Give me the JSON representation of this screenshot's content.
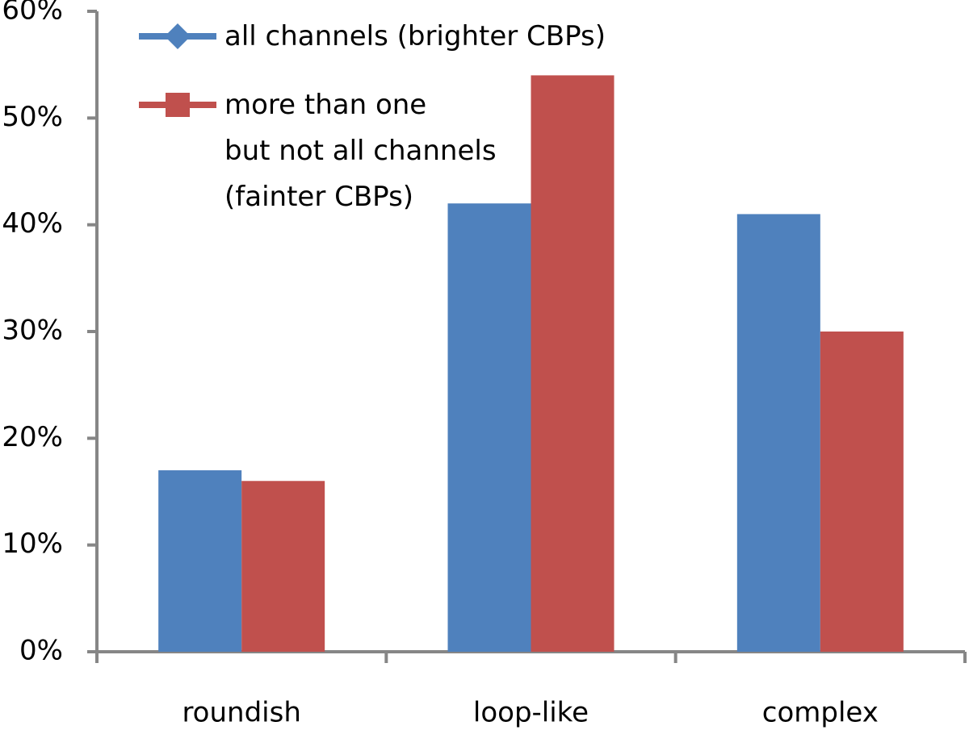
{
  "chart_data": {
    "type": "bar",
    "categories": [
      "roundish",
      "loop-like",
      "complex"
    ],
    "series": [
      {
        "name": "all channels (brighter CBPs)",
        "color": "#4f81bd",
        "marker": "diamond",
        "values": [
          17,
          42,
          41
        ]
      },
      {
        "name": "more than one\nbut not all channels\n(fainter CBPs)",
        "color": "#c0504d",
        "marker": "square",
        "values": [
          16,
          54,
          30
        ]
      }
    ],
    "ylim": [
      0,
      60
    ],
    "yticks": [
      {
        "value": 0,
        "label": "0%"
      },
      {
        "value": 10,
        "label": "10%"
      },
      {
        "value": 20,
        "label": "20%"
      },
      {
        "value": 30,
        "label": "30%"
      },
      {
        "value": 40,
        "label": "40%"
      },
      {
        "value": 50,
        "label": "50%"
      },
      {
        "value": 60,
        "label": "60%"
      }
    ],
    "grid": false,
    "legend": "top-left"
  }
}
